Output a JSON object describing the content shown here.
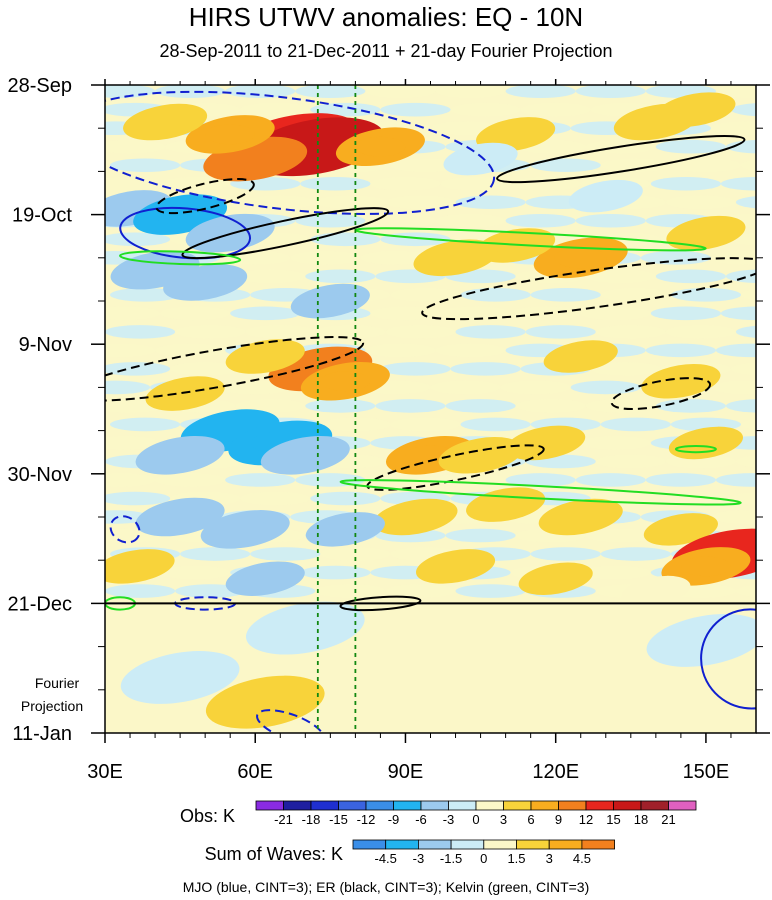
{
  "chart_data": {
    "type": "heatmap",
    "title": "HIRS UTWV anomalies: EQ - 10N",
    "subtitle": "28-Sep-2011 to 21-Dec-2011 + 21-day Fourier Projection",
    "x_axis": {
      "ticks": [
        "30E",
        "60E",
        "90E",
        "120E",
        "150E"
      ],
      "tick_values": [
        30,
        60,
        90,
        120,
        150
      ],
      "range": [
        30,
        160
      ]
    },
    "y_axis": {
      "ticks": [
        "28-Sep",
        "19-Oct",
        "9-Nov",
        "30-Nov",
        "21-Dec",
        "11-Jan"
      ],
      "tick_days": [
        0,
        21,
        42,
        63,
        84,
        105
      ],
      "range_days": [
        0,
        105
      ],
      "reversed": true
    },
    "projection_label": [
      "Fourier",
      "Projection"
    ],
    "observation_end_day": 84,
    "reference_longitudes": [
      72.5,
      80
    ],
    "obs_legend": {
      "label": "Obs: K",
      "levels": [
        "-21",
        "-18",
        "-15",
        "-12",
        "-9",
        "-6",
        "-3",
        "0",
        "3",
        "6",
        "9",
        "12",
        "15",
        "18",
        "21"
      ],
      "colors": [
        "#8a2be2",
        "#1f1fa0",
        "#1f2fd0",
        "#3a63e0",
        "#3a8ee8",
        "#22b4f0",
        "#9ccaee",
        "#ccecf6",
        "#fbf7c8",
        "#f8d33a",
        "#f8ad1f",
        "#f2801e",
        "#e8261e",
        "#c81818",
        "#a0202a",
        "#e060c0"
      ]
    },
    "waves_legend": {
      "label": "Sum of Waves: K",
      "levels": [
        "-4.5",
        "-3",
        "-1.5",
        "0",
        "1.5",
        "3",
        "4.5"
      ],
      "colors": [
        "#3a8ee8",
        "#22b4f0",
        "#9ccaee",
        "#ccecf6",
        "#fbf7c8",
        "#f8d33a",
        "#f8ad1f",
        "#f2801e"
      ]
    },
    "contour_note": "MJO (blue, CINT=3); ER (black, CINT=3); Kelvin (green, CINT=3)",
    "wave_colors": {
      "mjo": "#1020d0",
      "er": "#000000",
      "kelvin": "#22dd22"
    },
    "anomaly_blobs": [
      {
        "lon": 68,
        "day": 9,
        "value": 14
      },
      {
        "lon": 72,
        "day": 10,
        "value": 16
      },
      {
        "lon": 60,
        "day": 12,
        "value": 9
      },
      {
        "lon": 55,
        "day": 8,
        "value": 6
      },
      {
        "lon": 42,
        "day": 6,
        "value": 5
      },
      {
        "lon": 85,
        "day": 10,
        "value": 6
      },
      {
        "lon": 112,
        "day": 8,
        "value": 4
      },
      {
        "lon": 140,
        "day": 6,
        "value": 5
      },
      {
        "lon": 148,
        "day": 4,
        "value": 4
      },
      {
        "lon": 125,
        "day": 28,
        "value": 7
      },
      {
        "lon": 112,
        "day": 26,
        "value": 4
      },
      {
        "lon": 150,
        "day": 24,
        "value": 4
      },
      {
        "lon": 100,
        "day": 28,
        "value": 5
      },
      {
        "lon": 35,
        "day": 20,
        "value": -5
      },
      {
        "lon": 45,
        "day": 21,
        "value": -7
      },
      {
        "lon": 55,
        "day": 24,
        "value": -6
      },
      {
        "lon": 40,
        "day": 30,
        "value": -6
      },
      {
        "lon": 50,
        "day": 32,
        "value": -5
      },
      {
        "lon": 75,
        "day": 35,
        "value": -4
      },
      {
        "lon": 105,
        "day": 12,
        "value": -3
      },
      {
        "lon": 130,
        "day": 18,
        "value": -3
      },
      {
        "lon": 73,
        "day": 46,
        "value": 9
      },
      {
        "lon": 78,
        "day": 48,
        "value": 6
      },
      {
        "lon": 62,
        "day": 44,
        "value": 4
      },
      {
        "lon": 46,
        "day": 50,
        "value": 4
      },
      {
        "lon": 125,
        "day": 44,
        "value": 3
      },
      {
        "lon": 145,
        "day": 48,
        "value": 4
      },
      {
        "lon": 55,
        "day": 56,
        "value": -8
      },
      {
        "lon": 65,
        "day": 58,
        "value": -9
      },
      {
        "lon": 45,
        "day": 60,
        "value": -6
      },
      {
        "lon": 70,
        "day": 60,
        "value": -6
      },
      {
        "lon": 95,
        "day": 60,
        "value": 6
      },
      {
        "lon": 105,
        "day": 60,
        "value": 5
      },
      {
        "lon": 118,
        "day": 58,
        "value": 4
      },
      {
        "lon": 150,
        "day": 58,
        "value": 3
      },
      {
        "lon": 92,
        "day": 70,
        "value": 5
      },
      {
        "lon": 110,
        "day": 68,
        "value": 4
      },
      {
        "lon": 125,
        "day": 70,
        "value": 5
      },
      {
        "lon": 145,
        "day": 72,
        "value": 3
      },
      {
        "lon": 45,
        "day": 70,
        "value": -6
      },
      {
        "lon": 58,
        "day": 72,
        "value": -6
      },
      {
        "lon": 78,
        "day": 72,
        "value": -4
      },
      {
        "lon": 36,
        "day": 78,
        "value": 4
      },
      {
        "lon": 100,
        "day": 78,
        "value": 4
      },
      {
        "lon": 120,
        "day": 80,
        "value": 3
      },
      {
        "lon": 155,
        "day": 76,
        "value": 12
      },
      {
        "lon": 150,
        "day": 78,
        "value": 6
      },
      {
        "lon": 62,
        "day": 80,
        "value": -4
      },
      {
        "lon": 140,
        "day": 82,
        "value": 2
      },
      {
        "lon": 70,
        "day": 88,
        "value": -1
      },
      {
        "lon": 45,
        "day": 96,
        "value": -1
      },
      {
        "lon": 100,
        "day": 92,
        "value": 1
      },
      {
        "lon": 130,
        "day": 95,
        "value": 0.8
      },
      {
        "lon": 62,
        "day": 100,
        "value": 2
      },
      {
        "lon": 85,
        "day": 102,
        "value": 1
      },
      {
        "lon": 150,
        "day": 90,
        "value": -1
      }
    ],
    "mjo_contours": [
      {
        "cx": 65,
        "cy": 11,
        "rx": 43,
        "ry": 9,
        "rot": 7,
        "dash": true
      },
      {
        "cx": 46,
        "cy": 24,
        "rx": 13,
        "ry": 4,
        "rot": 5,
        "dash": false
      },
      {
        "cx": 34,
        "cy": 72,
        "rx": 3,
        "ry": 2,
        "rot": 30,
        "dash": true
      },
      {
        "cx": 50,
        "cy": 84,
        "rx": 6,
        "ry": 1,
        "rot": 0,
        "dash": true
      },
      {
        "cx": 159,
        "cy": 93,
        "rx": 10,
        "ry": 8,
        "rot": 30,
        "dash": false
      },
      {
        "cx": 67,
        "cy": 104,
        "rx": 7,
        "ry": 2,
        "rot": 20,
        "dash": true
      }
    ],
    "er_contours": [
      {
        "cx": 66,
        "cy": 24,
        "rx": 21,
        "ry": 2,
        "rot": -12,
        "dash": false
      },
      {
        "cx": 133,
        "cy": 12,
        "rx": 25,
        "ry": 2,
        "rot": -9,
        "dash": false
      },
      {
        "cx": 50,
        "cy": 18,
        "rx": 10,
        "ry": 2,
        "rot": -14,
        "dash": true
      },
      {
        "cx": 128,
        "cy": 33,
        "rx": 35,
        "ry": 3,
        "rot": -8,
        "dash": true
      },
      {
        "cx": 52,
        "cy": 46,
        "rx": 30,
        "ry": 3,
        "rot": -10,
        "dash": true
      },
      {
        "cx": 100,
        "cy": 62,
        "rx": 18,
        "ry": 2,
        "rot": -12,
        "dash": true
      },
      {
        "cx": 141,
        "cy": 50,
        "rx": 10,
        "ry": 2,
        "rot": -11,
        "dash": true
      },
      {
        "cx": 85,
        "cy": 84,
        "rx": 8,
        "ry": 1,
        "rot": -4,
        "dash": false
      }
    ],
    "kelvin_contours": [
      {
        "cx": 115,
        "cy": 25,
        "rx": 35,
        "ry": 1,
        "rot": 3,
        "dash": false
      },
      {
        "cx": 45,
        "cy": 28,
        "rx": 12,
        "ry": 1,
        "rot": 2,
        "dash": false
      },
      {
        "cx": 117,
        "cy": 66,
        "rx": 40,
        "ry": 1,
        "rot": 3,
        "dash": false
      },
      {
        "cx": 33,
        "cy": 84,
        "rx": 3,
        "ry": 1,
        "rot": 0,
        "dash": false
      },
      {
        "cx": 148,
        "cy": 59,
        "rx": 4,
        "ry": 0.5,
        "rot": 0,
        "dash": false
      }
    ]
  }
}
